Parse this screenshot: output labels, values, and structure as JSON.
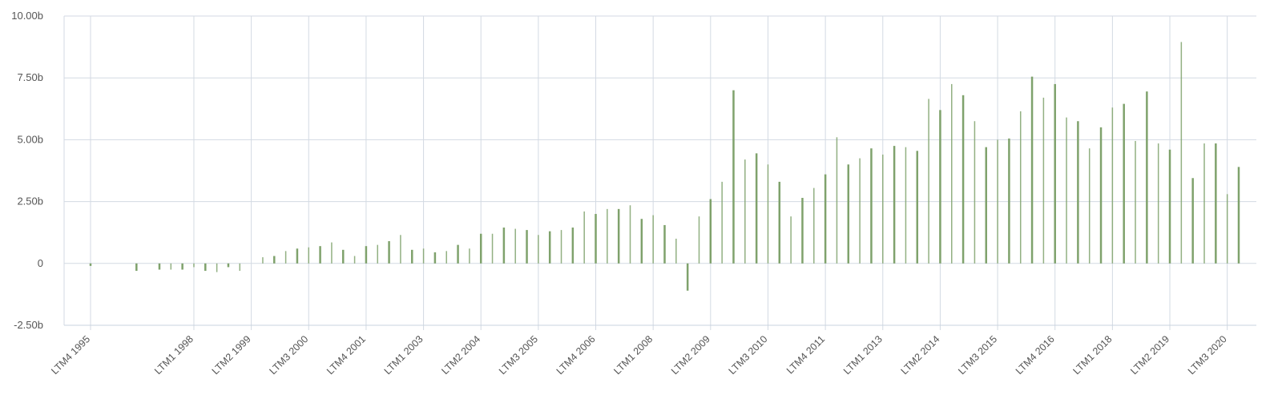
{
  "chart_data": {
    "type": "bar",
    "title": "",
    "xlabel": "",
    "ylabel": "",
    "ylim": [
      -2.5,
      10
    ],
    "y_unit": "b",
    "y_ticks": [
      {
        "value": -2.5,
        "label": "-2.50b"
      },
      {
        "value": 0,
        "label": "0"
      },
      {
        "value": 2.5,
        "label": "2.50b"
      },
      {
        "value": 5,
        "label": "5.00b"
      },
      {
        "value": 7.5,
        "label": "7.50b"
      },
      {
        "value": 10,
        "label": "10.00b"
      }
    ],
    "x_tick_labels": [
      "LTM4 1995",
      "LTM1 1998",
      "LTM2 1999",
      "LTM3 2000",
      "LTM4 2001",
      "LTM1 2003",
      "LTM2 2004",
      "LTM3 2005",
      "LTM4 2006",
      "LTM1 2008",
      "LTM2 2009",
      "LTM3 2010",
      "LTM4 2011",
      "LTM1 2013",
      "LTM2 2014",
      "LTM3 2015",
      "LTM4 2016",
      "LTM1 2018",
      "LTM2 2019",
      "LTM3 2020"
    ],
    "x_tick_indices": [
      0,
      9,
      14,
      19,
      24,
      29,
      34,
      39,
      44,
      49,
      54,
      59,
      64,
      69,
      74,
      79,
      84,
      89,
      94,
      99
    ],
    "values": [
      -0.1,
      null,
      null,
      null,
      -0.3,
      null,
      -0.25,
      -0.25,
      -0.25,
      -0.15,
      -0.3,
      -0.35,
      -0.15,
      -0.3,
      null,
      0.25,
      0.3,
      0.5,
      0.6,
      0.65,
      0.7,
      0.85,
      0.55,
      0.3,
      0.7,
      0.75,
      0.9,
      1.15,
      0.55,
      0.6,
      0.45,
      0.5,
      0.75,
      0.6,
      1.2,
      1.2,
      1.45,
      1.4,
      1.35,
      1.15,
      1.3,
      1.35,
      1.45,
      2.1,
      2.0,
      2.2,
      2.2,
      2.35,
      1.8,
      1.95,
      1.55,
      1.0,
      -1.1,
      1.9,
      2.6,
      3.3,
      7.0,
      4.2,
      4.45,
      4.0,
      3.3,
      1.9,
      2.65,
      3.05,
      3.6,
      5.1,
      4.0,
      4.25,
      4.65,
      4.4,
      4.75,
      4.7,
      4.55,
      6.65,
      6.2,
      7.25,
      6.8,
      5.75,
      4.7,
      5.0,
      5.05,
      6.15,
      7.55,
      6.7,
      7.25,
      5.9,
      5.75,
      4.65,
      5.5,
      6.3,
      6.45,
      4.95,
      6.95,
      4.85,
      4.6,
      8.95,
      3.45,
      4.85,
      4.85,
      2.8,
      3.9
    ],
    "series_color": "#7fa26c"
  }
}
